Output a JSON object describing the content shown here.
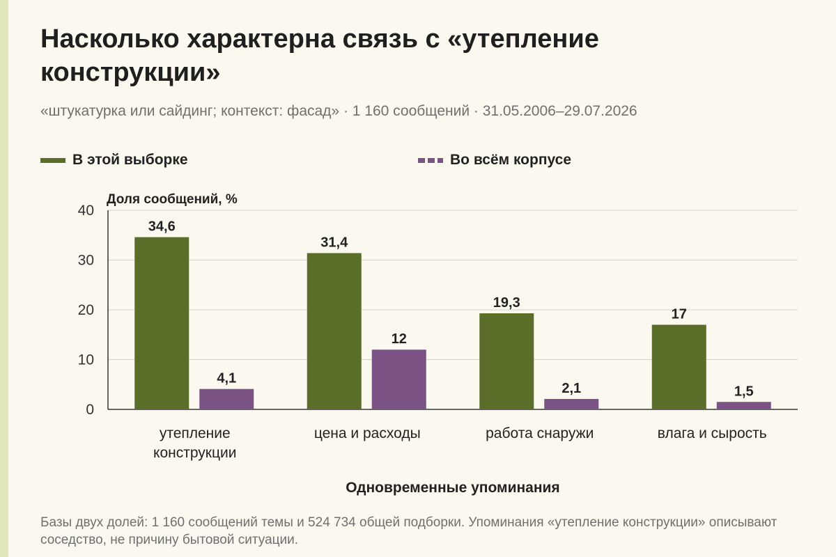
{
  "title": "Насколько характерна связь с «утепление конструкции»",
  "subtitle": "«штукатурка или сайдинг; контекст: фасад» · 1 160 сообщений · 31.05.2006–29.07.2026",
  "legend": [
    {
      "label": "В этой выборке",
      "color": "#5a6e2a",
      "style": "solid"
    },
    {
      "label": "Во всём корпусе",
      "color": "#7a5384",
      "style": "dashed"
    }
  ],
  "footnote": "Базы двух долей: 1 160 сообщений темы и 524 734 общей подборки. Упоминания «утепление конструкции» описывают соседство, не причину бытовой ситуации.",
  "chart_data": {
    "type": "bar",
    "ylabel": "Доля сообщений, %",
    "xlabel": "Одновременные упоминания",
    "ylim": [
      0,
      40
    ],
    "yticks": [
      0,
      10,
      20,
      30,
      40
    ],
    "grid": true,
    "legend_position": "top",
    "categories": [
      [
        "утепление",
        "конструкции"
      ],
      [
        "цена и расходы"
      ],
      [
        "работа снаружи"
      ],
      [
        "влага и сырость"
      ]
    ],
    "series": [
      {
        "name": "В этой выборке",
        "color": "#5a6e2a",
        "values": [
          34.6,
          31.4,
          19.3,
          17
        ],
        "labels": [
          "34,6",
          "31,4",
          "19,3",
          "17"
        ]
      },
      {
        "name": "Во всём корпусе",
        "color": "#7a5384",
        "values": [
          4.1,
          12,
          2.1,
          1.5
        ],
        "labels": [
          "4,1",
          "12",
          "2,1",
          "1,5"
        ]
      }
    ]
  }
}
